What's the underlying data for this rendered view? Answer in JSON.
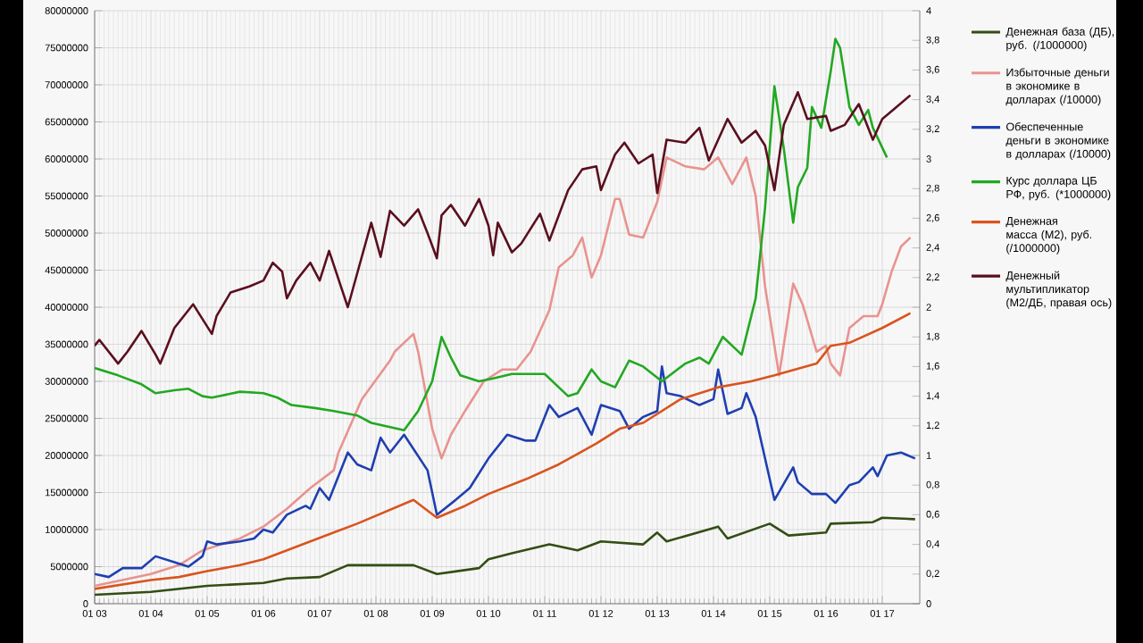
{
  "chart_data": {
    "type": "line",
    "xlim": [
      "2003-01",
      "2017-09"
    ],
    "ylim": [
      0,
      80000000
    ],
    "y2lim": [
      0,
      4
    ],
    "xticks": [
      {
        "value": "2003-01",
        "label": "01 03"
      },
      {
        "value": "2004-01",
        "label": "01 04"
      },
      {
        "value": "2005-01",
        "label": "01 05"
      },
      {
        "value": "2006-01",
        "label": "01 06"
      },
      {
        "value": "2007-01",
        "label": "01 07"
      },
      {
        "value": "2008-01",
        "label": "01 08"
      },
      {
        "value": "2009-01",
        "label": "01 09"
      },
      {
        "value": "2010-01",
        "label": "01 10"
      },
      {
        "value": "2011-01",
        "label": "01 11"
      },
      {
        "value": "2012-01",
        "label": "01 12"
      },
      {
        "value": "2013-01",
        "label": "01 13"
      },
      {
        "value": "2014-01",
        "label": "01 14"
      },
      {
        "value": "2015-01",
        "label": "01 15"
      },
      {
        "value": "2016-01",
        "label": "01 16"
      },
      {
        "value": "2017-01",
        "label": "01 17"
      }
    ],
    "yticks": [
      0,
      5000000,
      10000000,
      15000000,
      20000000,
      25000000,
      30000000,
      35000000,
      40000000,
      45000000,
      50000000,
      55000000,
      60000000,
      65000000,
      70000000,
      75000000,
      80000000
    ],
    "y2ticks": [
      0,
      {
        "value": 0.2,
        "label": "0,2"
      },
      {
        "value": 0.4,
        "label": "0,4"
      },
      {
        "value": 0.6,
        "label": "0,6"
      },
      {
        "value": 0.8,
        "label": "0,8"
      },
      1,
      {
        "value": 1.2,
        "label": "1,2"
      },
      {
        "value": 1.4,
        "label": "1,4"
      },
      {
        "value": 1.6,
        "label": "1,6"
      },
      {
        "value": 1.8,
        "label": "1,8"
      },
      2,
      {
        "value": 2.2,
        "label": "2,2"
      },
      {
        "value": 2.4,
        "label": "2,4"
      },
      {
        "value": 2.6,
        "label": "2,6"
      },
      {
        "value": 2.8,
        "label": "2,8"
      },
      3,
      {
        "value": 3.2,
        "label": "3,2"
      },
      {
        "value": 3.4,
        "label": "3,4"
      },
      {
        "value": 3.6,
        "label": "3,6"
      },
      {
        "value": 3.8,
        "label": "3,8"
      },
      4
    ],
    "grid": true,
    "legend": "right",
    "marker": "none",
    "line_style": "solid",
    "series": [
      {
        "name": "Денежная база (ДБ),  руб. (/1000000)",
        "color": "#334d14",
        "x": [
          "2003-01",
          "2004-01",
          "2004-07",
          "2005-01",
          "2006-01",
          "2006-06",
          "2007-01",
          "2007-07",
          "2007-12",
          "2008-09",
          "2009-02",
          "2009-11",
          "2010-01",
          "2010-06",
          "2011-02",
          "2011-08",
          "2012-01",
          "2012-10",
          "2013-01",
          "2013-03",
          "2014-02",
          "2014-04",
          "2015-01",
          "2015-05",
          "2016-01",
          "2016-02",
          "2016-11",
          "2017-01",
          "2017-08"
        ],
        "values": [
          1200000,
          1600000,
          2000000,
          2400000,
          2800000,
          3400000,
          3600000,
          5200000,
          5200000,
          5200000,
          4000000,
          4800000,
          6000000,
          6800000,
          8000000,
          7200000,
          8400000,
          8000000,
          9600000,
          8400000,
          10400000,
          8800000,
          10800000,
          9200000,
          9600000,
          10800000,
          11000000,
          11600000,
          11400000
        ]
      },
      {
        "name": "Избыточные деньги в экономике в долларах (/10000)",
        "color": "#e8938f",
        "x": [
          "2003-01",
          "2004-01",
          "2004-07",
          "2004-12",
          "2005-08",
          "2006-01",
          "2006-06",
          "2006-11",
          "2007-04",
          "2007-05",
          "2007-10",
          "2008-04",
          "2008-05",
          "2008-09",
          "2008-10",
          "2009-01",
          "2009-03",
          "2009-05",
          "2009-08",
          "2009-12",
          "2010-04",
          "2010-07",
          "2010-10",
          "2011-02",
          "2011-04",
          "2011-07",
          "2011-09",
          "2011-11",
          "2012-01",
          "2012-04",
          "2012-05",
          "2012-07",
          "2012-10",
          "2012-12",
          "2013-01",
          "2013-03",
          "2013-07",
          "2013-11",
          "2014-02",
          "2014-05",
          "2014-08",
          "2014-10",
          "2014-12",
          "2015-03",
          "2015-06",
          "2015-08",
          "2015-11",
          "2016-01",
          "2016-02",
          "2016-04",
          "2016-06",
          "2016-09",
          "2016-12",
          "2017-01",
          "2017-03",
          "2017-05",
          "2017-07"
        ],
        "values": [
          2400000,
          4000000,
          5200000,
          7200000,
          8800000,
          10400000,
          12800000,
          15600000,
          18000000,
          20400000,
          27600000,
          32800000,
          34000000,
          36400000,
          34000000,
          23600000,
          19600000,
          22800000,
          26000000,
          30000000,
          31600000,
          31600000,
          34000000,
          39600000,
          45400000,
          47000000,
          49400000,
          44000000,
          47000000,
          54600000,
          54600000,
          49800000,
          49400000,
          52600000,
          54200000,
          60200000,
          59000000,
          58600000,
          60200000,
          56600000,
          60200000,
          55000000,
          42800000,
          30800000,
          43200000,
          40400000,
          34000000,
          34800000,
          32400000,
          30800000,
          37200000,
          38800000,
          38800000,
          40400000,
          44800000,
          48200000,
          49400000
        ]
      },
      {
        "name": "Обеспеченные деньги в экономике в долларах (/10000)",
        "color": "#1f3fb0",
        "x": [
          "2003-01",
          "2003-04",
          "2003-07",
          "2003-11",
          "2004-02",
          "2004-06",
          "2004-09",
          "2004-12",
          "2005-01",
          "2005-03",
          "2005-08",
          "2005-11",
          "2006-01",
          "2006-03",
          "2006-06",
          "2006-10",
          "2006-11",
          "2007-01",
          "2007-03",
          "2007-07",
          "2007-09",
          "2007-12",
          "2008-02",
          "2008-04",
          "2008-07",
          "2008-12",
          "2009-02",
          "2009-06",
          "2009-09",
          "2010-01",
          "2010-05",
          "2010-09",
          "2010-11",
          "2011-02",
          "2011-04",
          "2011-08",
          "2011-11",
          "2012-01",
          "2012-05",
          "2012-07",
          "2012-10",
          "2013-01",
          "2013-02",
          "2013-03",
          "2013-06",
          "2013-10",
          "2014-01",
          "2014-02",
          "2014-04",
          "2014-07",
          "2014-08",
          "2014-10",
          "2014-12",
          "2015-02",
          "2015-06",
          "2015-07",
          "2015-10",
          "2016-01",
          "2016-03",
          "2016-06",
          "2016-08",
          "2016-11",
          "2016-12",
          "2017-02",
          "2017-05",
          "2017-08"
        ],
        "values": [
          4000000,
          3600000,
          4800000,
          4800000,
          6400000,
          5600000,
          5000000,
          6400000,
          8400000,
          8000000,
          8400000,
          8800000,
          10000000,
          9600000,
          12000000,
          13200000,
          12800000,
          15600000,
          14000000,
          20400000,
          18800000,
          18000000,
          22400000,
          20400000,
          22800000,
          18000000,
          12000000,
          14000000,
          15600000,
          19600000,
          22800000,
          22000000,
          22000000,
          26800000,
          25200000,
          26400000,
          22800000,
          26800000,
          26000000,
          23600000,
          25200000,
          26000000,
          32000000,
          28400000,
          28000000,
          26800000,
          27600000,
          31600000,
          25600000,
          26400000,
          28400000,
          25200000,
          19600000,
          14000000,
          18400000,
          16400000,
          14800000,
          14800000,
          13600000,
          16000000,
          16400000,
          18400000,
          17200000,
          20000000,
          20400000,
          19600000
        ]
      },
      {
        "name": "Курс доллара ЦБ РФ, руб. (*1000000)",
        "color": "#22a822",
        "x": [
          "2003-01",
          "2003-06",
          "2003-11",
          "2004-02",
          "2004-06",
          "2004-09",
          "2004-12",
          "2005-02",
          "2005-08",
          "2006-01",
          "2006-04",
          "2006-07",
          "2006-12",
          "2007-04",
          "2007-09",
          "2007-12",
          "2008-07",
          "2008-10",
          "2009-01",
          "2009-03",
          "2009-05",
          "2009-07",
          "2009-11",
          "2010-02",
          "2010-06",
          "2011-01",
          "2011-06",
          "2011-08",
          "2011-11",
          "2012-01",
          "2012-04",
          "2012-07",
          "2012-10",
          "2013-02",
          "2013-07",
          "2013-10",
          "2013-12",
          "2014-03",
          "2014-07",
          "2014-10",
          "2014-12",
          "2015-02",
          "2015-04",
          "2015-06",
          "2015-07",
          "2015-09",
          "2015-10",
          "2015-12",
          "2016-02",
          "2016-03",
          "2016-04",
          "2016-06",
          "2016-08",
          "2016-10",
          "2016-11",
          "2017-02"
        ],
        "values": [
          31800000,
          30800000,
          29600000,
          28400000,
          28800000,
          29000000,
          28000000,
          27800000,
          28600000,
          28400000,
          27800000,
          26800000,
          26400000,
          26000000,
          25400000,
          24400000,
          23400000,
          26000000,
          30000000,
          36000000,
          33200000,
          30800000,
          30000000,
          30400000,
          31000000,
          31000000,
          28000000,
          28400000,
          31600000,
          30000000,
          29200000,
          32800000,
          32000000,
          30000000,
          32400000,
          33200000,
          32400000,
          36000000,
          33600000,
          41200000,
          53400000,
          69800000,
          61400000,
          51400000,
          56200000,
          58800000,
          67000000,
          64200000,
          71800000,
          76200000,
          75000000,
          67000000,
          64600000,
          66600000,
          64200000,
          60200000
        ]
      },
      {
        "name": "Денежная масса (M2), руб. (/1000000)",
        "color": "#d9541e",
        "x": [
          "2003-01",
          "2004-01",
          "2004-07",
          "2005-01",
          "2005-08",
          "2006-01",
          "2006-06",
          "2006-11",
          "2007-04",
          "2007-09",
          "2008-09",
          "2009-02",
          "2009-08",
          "2010-01",
          "2010-09",
          "2011-04",
          "2011-12",
          "2012-05",
          "2012-10",
          "2013-06",
          "2014-02",
          "2014-09",
          "2015-02",
          "2015-11",
          "2016-02",
          "2016-06",
          "2017-01",
          "2017-07"
        ],
        "values": [
          2000000,
          3200000,
          3600000,
          4400000,
          5200000,
          6000000,
          7200000,
          8400000,
          9600000,
          10800000,
          14000000,
          11600000,
          13200000,
          14800000,
          16800000,
          18800000,
          21600000,
          23600000,
          24400000,
          27600000,
          29200000,
          30000000,
          30800000,
          32400000,
          34800000,
          35200000,
          37200000,
          39200000
        ]
      },
      {
        "name": "Денежный мультипликатор (M2/ДБ, правая ось)",
        "color": "#5a0f1e",
        "axis": "y2",
        "x": [
          "2003-01",
          "2003-02",
          "2003-06",
          "2003-08",
          "2003-11",
          "2004-02",
          "2004-03",
          "2004-06",
          "2004-10",
          "2005-02",
          "2005-03",
          "2005-06",
          "2005-10",
          "2006-01",
          "2006-03",
          "2006-05",
          "2006-06",
          "2006-08",
          "2006-11",
          "2007-01",
          "2007-03",
          "2007-07",
          "2007-12",
          "2008-02",
          "2008-04",
          "2008-07",
          "2008-10",
          "2008-12",
          "2009-02",
          "2009-03",
          "2009-05",
          "2009-08",
          "2009-11",
          "2010-01",
          "2010-02",
          "2010-03",
          "2010-06",
          "2010-08",
          "2010-12",
          "2011-02",
          "2011-06",
          "2011-09",
          "2011-12",
          "2012-01",
          "2012-04",
          "2012-06",
          "2012-09",
          "2012-12",
          "2013-01",
          "2013-03",
          "2013-07",
          "2013-10",
          "2013-12",
          "2014-04",
          "2014-07",
          "2014-10",
          "2014-12",
          "2015-02",
          "2015-04",
          "2015-07",
          "2015-09",
          "2016-01",
          "2016-02",
          "2016-05",
          "2016-08",
          "2016-11",
          "2017-01",
          "2017-04",
          "2017-07"
        ],
        "values": [
          1.74,
          1.78,
          1.62,
          1.7,
          1.84,
          1.68,
          1.62,
          1.86,
          2.02,
          1.82,
          1.94,
          2.1,
          2.14,
          2.18,
          2.3,
          2.24,
          2.06,
          2.18,
          2.3,
          2.18,
          2.38,
          2.0,
          2.57,
          2.34,
          2.65,
          2.55,
          2.66,
          2.5,
          2.33,
          2.62,
          2.69,
          2.55,
          2.73,
          2.55,
          2.35,
          2.57,
          2.37,
          2.43,
          2.63,
          2.45,
          2.79,
          2.93,
          2.95,
          2.79,
          3.03,
          3.11,
          2.97,
          3.03,
          2.77,
          3.13,
          3.11,
          3.21,
          2.99,
          3.27,
          3.11,
          3.19,
          3.09,
          2.79,
          3.23,
          3.45,
          3.27,
          3.29,
          3.19,
          3.23,
          3.37,
          3.13,
          3.27,
          3.35,
          3.43
        ]
      }
    ]
  }
}
